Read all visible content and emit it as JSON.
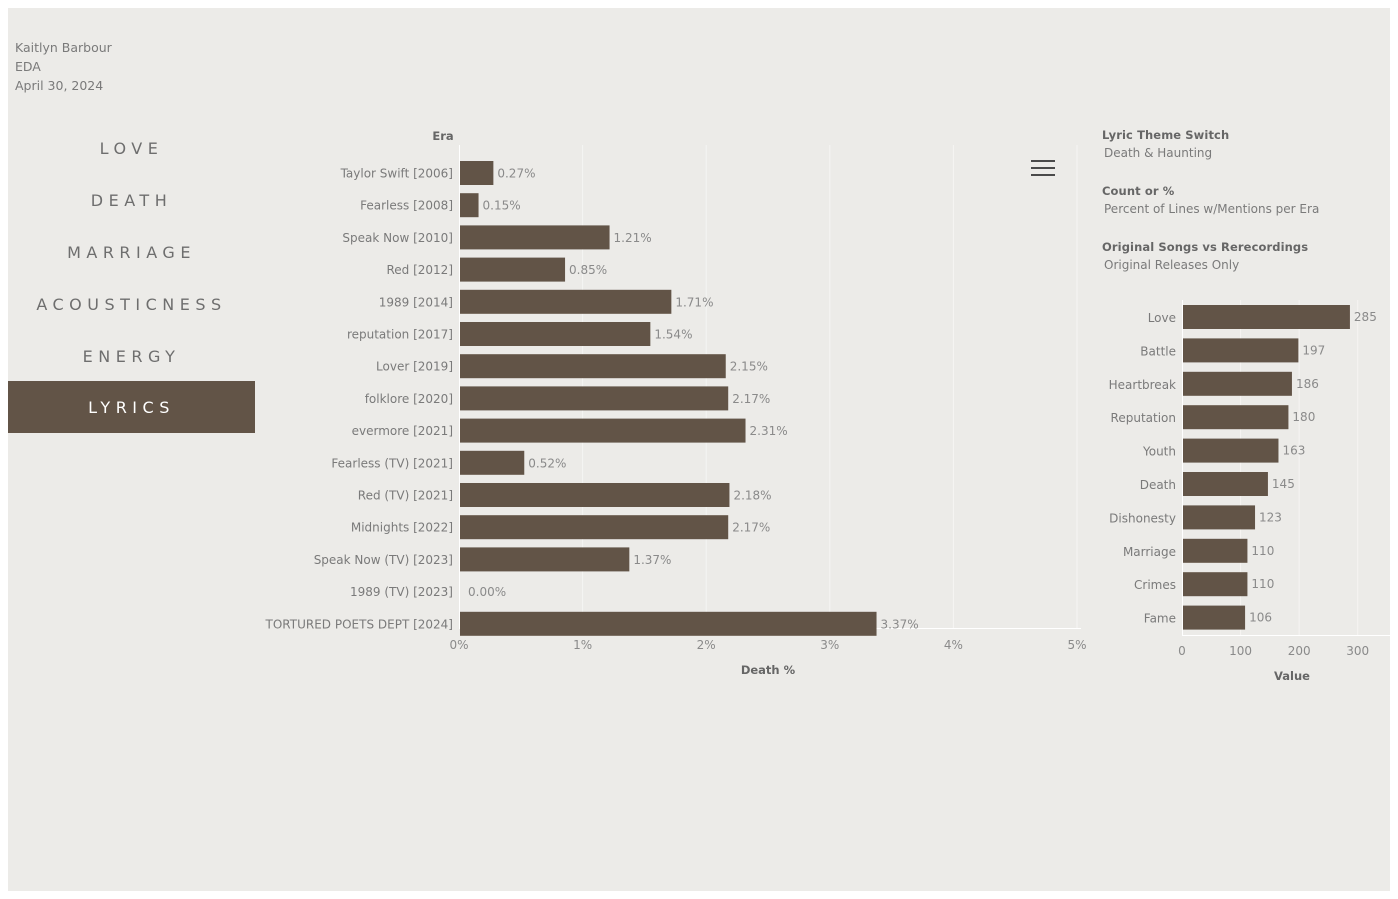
{
  "header": {
    "author": "Kaitlyn Barbour",
    "subtitle": "EDA",
    "date": "April 30, 2024"
  },
  "nav": {
    "items": [
      {
        "label": "LOVE",
        "active": false
      },
      {
        "label": "DEATH",
        "active": false
      },
      {
        "label": "MARRIAGE",
        "active": false
      },
      {
        "label": "ACOUSTICNESS",
        "active": false
      },
      {
        "label": "ENERGY",
        "active": false
      },
      {
        "label": "LYRICS",
        "active": true
      }
    ]
  },
  "filters": {
    "lyric_theme": {
      "title": "Lyric Theme Switch",
      "value": "Death & Haunting"
    },
    "count_or_pct": {
      "title": "Count or %",
      "value": "Percent of Lines w/Mentions per Era"
    },
    "original_vs_rerecord": {
      "title": "Original Songs vs Rerecordings",
      "value": "Original Releases Only"
    }
  },
  "menu_icon": "hamburger-menu-icon",
  "colors": {
    "background": "#ecebe8",
    "bar": "#625447",
    "nav_active": "#625447",
    "gridline": "#f6f5f3",
    "text": "#7a7a7a"
  },
  "chart_data": [
    {
      "type": "bar",
      "orientation": "horizontal",
      "ylabel": "Era",
      "xlabel": "Death %",
      "xlim": [
        0,
        5
      ],
      "xticks": [
        "0%",
        "1%",
        "2%",
        "3%",
        "4%",
        "5%"
      ],
      "grid": true,
      "categories": [
        "Taylor Swift [2006]",
        "Fearless [2008]",
        "Speak Now [2010]",
        "Red [2012]",
        "1989 [2014]",
        "reputation [2017]",
        "Lover [2019]",
        "folklore [2020]",
        "evermore [2021]",
        "Fearless (TV) [2021]",
        "Red (TV) [2021]",
        "Midnights [2022]",
        "Speak Now (TV) [2023]",
        "1989 (TV) [2023]",
        "TORTURED POETS DEPT [2024]"
      ],
      "values": [
        0.27,
        0.15,
        1.21,
        0.85,
        1.71,
        1.54,
        2.15,
        2.17,
        2.31,
        0.52,
        2.18,
        2.17,
        1.37,
        0.0,
        3.37
      ],
      "labels": [
        "0.27%",
        "0.15%",
        "1.21%",
        "0.85%",
        "1.71%",
        "1.54%",
        "2.15%",
        "2.17%",
        "2.31%",
        "0.52%",
        "2.18%",
        "2.17%",
        "1.37%",
        "0.00%",
        "3.37%"
      ]
    },
    {
      "type": "bar",
      "orientation": "horizontal",
      "xlabel": "Value",
      "xlim": [
        0,
        350
      ],
      "xticks": [
        "0",
        "100",
        "200",
        "300"
      ],
      "grid": true,
      "categories": [
        "Love",
        "Battle",
        "Heartbreak",
        "Reputation",
        "Youth",
        "Death",
        "Dishonesty",
        "Marriage",
        "Crimes",
        "Fame"
      ],
      "values": [
        285,
        197,
        186,
        180,
        163,
        145,
        123,
        110,
        110,
        106
      ],
      "labels": [
        "285",
        "197",
        "186",
        "180",
        "163",
        "145",
        "123",
        "110",
        "110",
        "106"
      ]
    }
  ]
}
